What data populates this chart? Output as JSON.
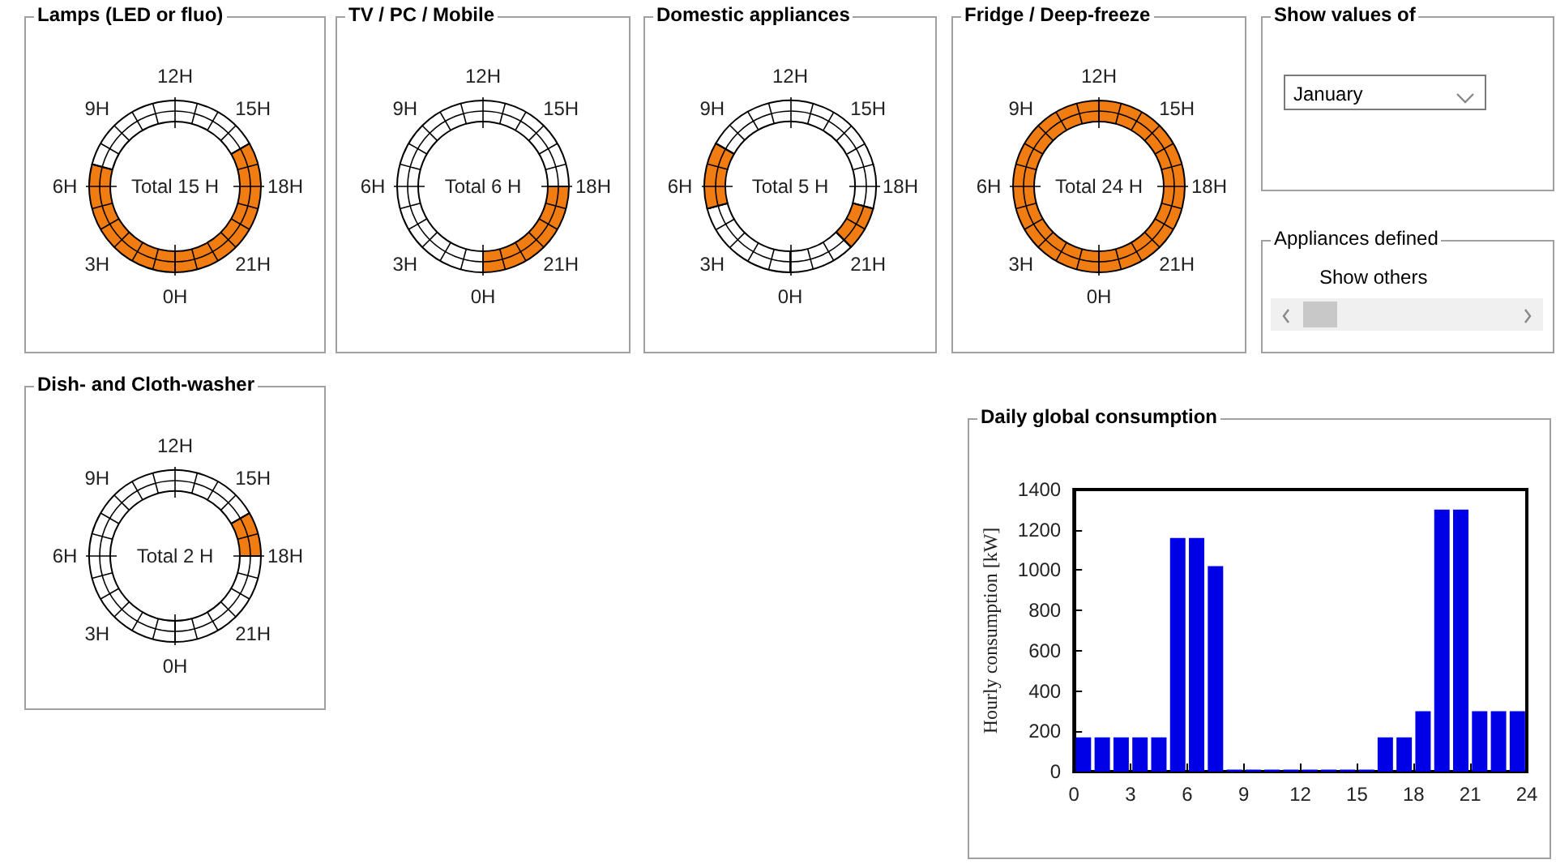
{
  "chart_data": [
    {
      "type": "donut",
      "title": "Lamps (LED or fluo)",
      "categories": [
        null,
        null,
        null
      ],
      "values": [
        29.17,
        37.5,
        33.33
      ],
      "colors": [
        "#f07c12",
        "#ffffff",
        "#f07c12"
      ],
      "annotations": [
        "0H",
        "3H",
        "6H",
        "9H",
        "12H",
        "15H",
        "18H",
        "21H",
        "Total 15 H"
      ]
    },
    {
      "type": "donut",
      "title": "TV / PC / Mobile",
      "categories": [
        null,
        null
      ],
      "values": [
        75,
        25
      ],
      "colors": [
        "#ffffff",
        "#f07c12"
      ],
      "annotations": [
        "0H",
        "3H",
        "6H",
        "9H",
        "12H",
        "15H",
        "18H",
        "21H",
        "Total 6 H"
      ]
    },
    {
      "type": "donut",
      "title": "Domestic appliances",
      "categories": [
        null,
        null,
        null,
        null,
        null
      ],
      "values": [
        20.83,
        12.5,
        45.83,
        8.33,
        12.5
      ],
      "colors": [
        "#ffffff",
        "#f07c12",
        "#ffffff",
        "#f07c12",
        "#ffffff"
      ],
      "annotations": [
        "0H",
        "3H",
        "6H",
        "9H",
        "12H",
        "15H",
        "18H",
        "21H",
        "Total 5 H"
      ]
    },
    {
      "type": "donut",
      "title": "Fridge / Deep-freeze",
      "categories": [
        null,
        null
      ],
      "values": [
        50,
        50
      ],
      "colors": [
        "#f07c12",
        "#f07c12"
      ],
      "annotations": [
        "0H",
        "3H",
        "6H",
        "9H",
        "12H",
        "15H",
        "18H",
        "21H",
        "Total 24 H"
      ]
    },
    {
      "type": "other",
      "title": "Show values of",
      "annotations": [
        "January"
      ]
    },
    {
      "type": "other",
      "title": "Appliances defined",
      "annotations": [
        "Show others"
      ]
    },
    {
      "type": "donut",
      "title": "Dish- and Cloth-washer",
      "categories": [
        null,
        null,
        null
      ],
      "values": [
        66.67,
        8.33,
        25
      ],
      "colors": [
        "#ffffff",
        "#f07c12",
        "#ffffff"
      ],
      "annotations": [
        "0H",
        "3H",
        "6H",
        "9H",
        "12H",
        "15H",
        "18H",
        "21H",
        "Total 2 H"
      ]
    },
    {
      "type": "bar",
      "title": "Daily global consumption",
      "ylabel": "Hourly consumption [kW]",
      "x": [
        0.5,
        1.5,
        2.5,
        3.5,
        4.5,
        5.5,
        6.5,
        7.5,
        8.5,
        9.5,
        10.5,
        11.5,
        12.5,
        13.5,
        14.5,
        15.5,
        16.5,
        17.5,
        18.5,
        19.5,
        20.5,
        21.5,
        22.5,
        23.5
      ],
      "values": [
        170,
        170,
        170,
        170,
        170,
        1160,
        1160,
        1020,
        10,
        10,
        10,
        10,
        10,
        10,
        10,
        10,
        170,
        170,
        300,
        1300,
        1300,
        300,
        300,
        300
      ],
      "color": "#0000e6",
      "xlim": [
        0,
        24
      ],
      "xticks": [
        0,
        3,
        6,
        9,
        12,
        15,
        18,
        21,
        24
      ],
      "ylim": [
        0,
        1400
      ],
      "yticks": [
        0,
        200,
        400,
        600,
        800,
        1000,
        1200,
        1400
      ]
    }
  ]
}
